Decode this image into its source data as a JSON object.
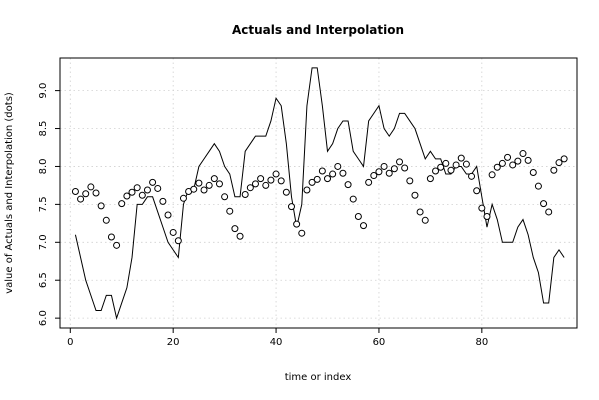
{
  "chart_data": {
    "type": "line",
    "title": "Actuals and Interpolation",
    "xlabel": "time or index",
    "ylabel": "value of Actuals and Interpolation (dots)",
    "xlim": [
      -2,
      98.5
    ],
    "ylim": [
      5.87,
      9.43
    ],
    "xticks": [
      0,
      20,
      40,
      60,
      80
    ],
    "yticks": [
      6.0,
      6.5,
      7.0,
      7.5,
      8.0,
      8.5,
      9.0
    ],
    "grid": true,
    "series": [
      {
        "style": "line",
        "x": [
          1,
          2,
          3,
          4,
          5,
          6,
          7,
          8,
          9,
          10,
          11,
          12,
          13,
          14,
          15,
          16,
          17,
          18,
          19,
          20,
          21,
          22,
          23,
          24,
          25,
          26,
          27,
          28,
          29,
          30,
          31,
          32,
          33,
          34,
          35,
          36,
          37,
          38,
          39,
          40,
          41,
          42,
          43,
          44,
          45,
          46,
          47,
          48,
          49,
          50,
          51,
          52,
          53,
          54,
          55,
          56,
          57,
          58,
          59,
          60,
          61,
          62,
          63,
          64,
          65,
          66,
          67,
          68,
          69,
          70,
          71,
          72,
          73,
          74,
          75,
          76,
          77,
          78,
          79,
          80,
          81,
          82,
          83,
          84,
          85,
          86,
          87,
          88,
          89,
          90,
          91,
          92,
          93,
          94,
          95,
          96
        ],
        "values": [
          7.1,
          6.8,
          6.5,
          6.3,
          6.1,
          6.1,
          6.3,
          6.3,
          6.0,
          6.2,
          6.4,
          6.8,
          7.5,
          7.5,
          7.6,
          7.6,
          7.4,
          7.2,
          7.0,
          6.9,
          6.8,
          7.5,
          7.7,
          7.7,
          8.0,
          8.1,
          8.2,
          8.3,
          8.2,
          8.0,
          7.9,
          7.6,
          7.6,
          8.2,
          8.3,
          8.4,
          8.4,
          8.4,
          8.6,
          8.9,
          8.8,
          8.3,
          7.6,
          7.2,
          7.5,
          8.8,
          9.3,
          9.3,
          8.8,
          8.2,
          8.3,
          8.5,
          8.6,
          8.6,
          8.2,
          8.1,
          8.0,
          8.6,
          8.7,
          8.8,
          8.5,
          8.4,
          8.5,
          8.7,
          8.7,
          8.6,
          8.5,
          8.3,
          8.1,
          8.2,
          8.1,
          8.1,
          7.9,
          7.9,
          8.0,
          8.0,
          7.9,
          7.9,
          8.0,
          7.6,
          7.2,
          7.5,
          7.3,
          7.0,
          7.0,
          7.0,
          7.2,
          7.3,
          7.1,
          6.8,
          6.6,
          6.2,
          6.2,
          6.8,
          6.9,
          6.8
        ]
      },
      {
        "style": "points",
        "x": [
          1,
          2,
          3,
          4,
          5,
          6,
          7,
          8,
          9,
          10,
          11,
          12,
          13,
          14,
          15,
          16,
          17,
          18,
          19,
          20,
          21,
          22,
          23,
          24,
          25,
          26,
          27,
          28,
          29,
          30,
          31,
          32,
          33,
          34,
          35,
          36,
          37,
          38,
          39,
          40,
          41,
          42,
          43,
          44,
          45,
          46,
          47,
          48,
          49,
          50,
          51,
          52,
          53,
          54,
          55,
          56,
          57,
          58,
          59,
          60,
          61,
          62,
          63,
          64,
          65,
          66,
          67,
          68,
          69,
          70,
          71,
          72,
          73,
          74,
          75,
          76,
          77,
          78,
          79,
          80,
          81,
          82,
          83,
          84,
          85,
          86,
          87,
          88,
          89,
          90,
          91,
          92,
          93,
          94,
          95,
          96
        ],
        "values": [
          7.67,
          7.57,
          7.64,
          7.73,
          7.65,
          7.48,
          7.29,
          7.07,
          6.96,
          7.51,
          7.61,
          7.66,
          7.72,
          7.62,
          7.69,
          7.79,
          7.71,
          7.54,
          7.36,
          7.13,
          7.02,
          7.58,
          7.67,
          7.7,
          7.78,
          7.69,
          7.75,
          7.84,
          7.77,
          7.6,
          7.41,
          7.18,
          7.08,
          7.63,
          7.72,
          7.77,
          7.84,
          7.75,
          7.82,
          7.9,
          7.81,
          7.66,
          7.47,
          7.24,
          7.12,
          7.69,
          7.79,
          7.83,
          7.94,
          7.84,
          7.9,
          8.0,
          7.91,
          7.76,
          7.57,
          7.34,
          7.22,
          7.79,
          7.88,
          7.93,
          8.0,
          7.91,
          7.97,
          8.06,
          7.98,
          7.81,
          7.62,
          7.4,
          7.29,
          7.84,
          7.94,
          7.99,
          8.04,
          7.95,
          8.02,
          8.11,
          8.03,
          7.87,
          7.68,
          7.45,
          7.34,
          7.89,
          7.99,
          8.04,
          8.12,
          8.02,
          8.07,
          8.17,
          8.08,
          7.92,
          7.74,
          7.51,
          7.4,
          7.95,
          8.05,
          8.1
        ]
      }
    ]
  }
}
